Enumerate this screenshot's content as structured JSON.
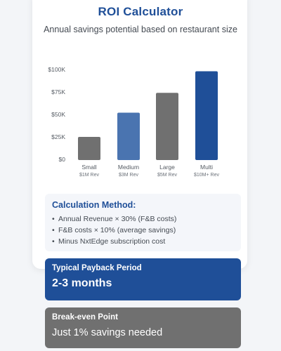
{
  "header": {
    "title": "ROI Calculator",
    "subtitle": "Annual savings potential based on restaurant size"
  },
  "chart_data": {
    "type": "bar",
    "categories": [
      "Small",
      "Medium",
      "Large",
      "Multi"
    ],
    "category_sublabels": [
      "$1M Rev",
      "$3M Rev",
      "$5M Rev",
      "$10M+ Rev"
    ],
    "values": [
      25000,
      52000,
      74000,
      98000
    ],
    "bar_colors": [
      "#707070",
      "#4a74b0",
      "#707070",
      "#1f4f98"
    ],
    "y_ticks": [
      0,
      25000,
      50000,
      75000,
      100000
    ],
    "y_tick_labels": [
      "$0",
      "$25K",
      "$50K",
      "$75K",
      "$100K"
    ],
    "ylim": [
      0,
      100000
    ],
    "grid": false
  },
  "calculation": {
    "title": "Calculation Method:",
    "items": [
      "Annual Revenue × 30% (F&B costs)",
      "F&B costs × 10% (average savings)",
      "Minus NxtEdge subscription cost"
    ]
  },
  "payback": {
    "label": "Typical Payback Period",
    "value": "2-3 months"
  },
  "breakeven": {
    "label": "Break-even Point",
    "value": "Just 1% savings needed"
  },
  "colors": {
    "primary": "#1f4f98",
    "medium_bar": "#4a74b0",
    "gray": "#707070",
    "background": "#f3f5f8",
    "card": "#ffffff"
  }
}
